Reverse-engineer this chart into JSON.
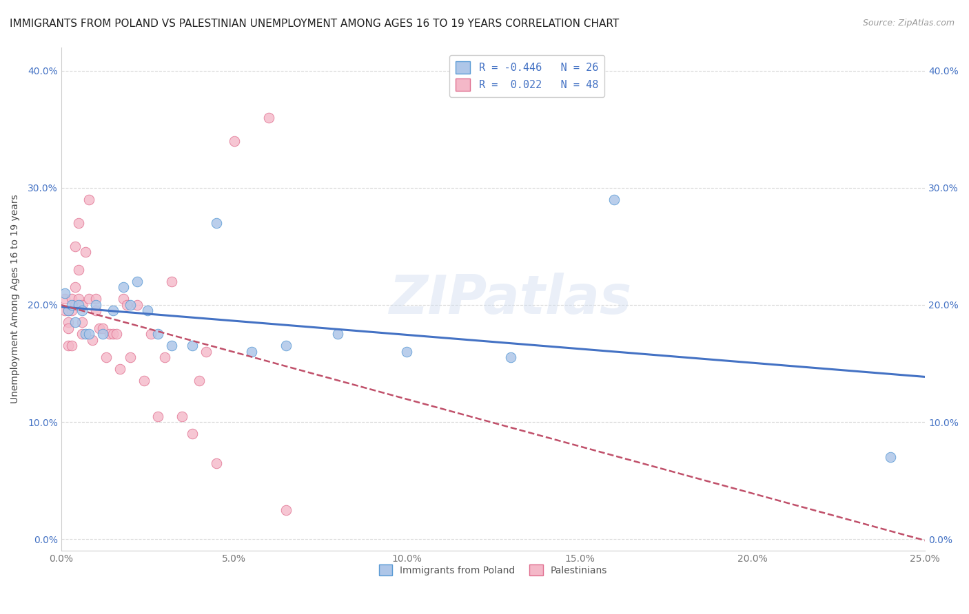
{
  "title": "IMMIGRANTS FROM POLAND VS PALESTINIAN UNEMPLOYMENT AMONG AGES 16 TO 19 YEARS CORRELATION CHART",
  "source": "Source: ZipAtlas.com",
  "ylabel": "Unemployment Among Ages 16 to 19 years",
  "xlabel_ticks": [
    "0.0%",
    "5.0%",
    "10.0%",
    "15.0%",
    "20.0%",
    "25.0%"
  ],
  "xlabel_vals": [
    0.0,
    0.05,
    0.1,
    0.15,
    0.2,
    0.25
  ],
  "ylabel_ticks": [
    "0.0%",
    "10.0%",
    "20.0%",
    "30.0%",
    "40.0%"
  ],
  "ylabel_vals": [
    0.0,
    0.1,
    0.2,
    0.3,
    0.4
  ],
  "xlim": [
    0.0,
    0.25
  ],
  "ylim": [
    -0.01,
    0.42
  ],
  "poland_x": [
    0.001,
    0.002,
    0.003,
    0.004,
    0.005,
    0.006,
    0.007,
    0.008,
    0.01,
    0.012,
    0.015,
    0.018,
    0.02,
    0.022,
    0.025,
    0.028,
    0.032,
    0.038,
    0.045,
    0.055,
    0.065,
    0.08,
    0.1,
    0.13,
    0.16,
    0.24
  ],
  "poland_y": [
    0.21,
    0.195,
    0.2,
    0.185,
    0.2,
    0.195,
    0.175,
    0.175,
    0.2,
    0.175,
    0.195,
    0.215,
    0.2,
    0.22,
    0.195,
    0.175,
    0.165,
    0.165,
    0.27,
    0.16,
    0.165,
    0.175,
    0.16,
    0.155,
    0.29,
    0.07
  ],
  "palestinian_x": [
    0.001,
    0.001,
    0.002,
    0.002,
    0.002,
    0.002,
    0.003,
    0.003,
    0.003,
    0.004,
    0.004,
    0.004,
    0.005,
    0.005,
    0.005,
    0.006,
    0.006,
    0.006,
    0.007,
    0.008,
    0.008,
    0.009,
    0.01,
    0.01,
    0.011,
    0.012,
    0.013,
    0.014,
    0.015,
    0.016,
    0.017,
    0.018,
    0.019,
    0.02,
    0.022,
    0.024,
    0.026,
    0.028,
    0.03,
    0.032,
    0.035,
    0.038,
    0.04,
    0.042,
    0.045,
    0.05,
    0.06,
    0.065
  ],
  "palestinian_y": [
    0.205,
    0.195,
    0.195,
    0.185,
    0.18,
    0.165,
    0.205,
    0.195,
    0.165,
    0.25,
    0.215,
    0.2,
    0.27,
    0.23,
    0.205,
    0.2,
    0.185,
    0.175,
    0.245,
    0.29,
    0.205,
    0.17,
    0.205,
    0.195,
    0.18,
    0.18,
    0.155,
    0.175,
    0.175,
    0.175,
    0.145,
    0.205,
    0.2,
    0.155,
    0.2,
    0.135,
    0.175,
    0.105,
    0.155,
    0.22,
    0.105,
    0.09,
    0.135,
    0.16,
    0.065,
    0.34,
    0.36,
    0.025
  ],
  "poland_color": "#aec6e8",
  "poland_edge_color": "#5b9bd5",
  "palestinian_color": "#f4b8c8",
  "palestinian_edge_color": "#e07090",
  "poland_line_color": "#4472c4",
  "palestinian_line_color": "#c0506a",
  "background_color": "#ffffff",
  "grid_color": "#d0d0d0",
  "watermark": "ZIPatlas",
  "title_fontsize": 11,
  "axis_label_fontsize": 10,
  "tick_fontsize": 10,
  "tick_color_x": "#777777",
  "tick_color_y": "#4472c4",
  "marker_size": 110,
  "r_poland": "-0.446",
  "n_poland": "26",
  "r_palestinian": "0.022",
  "n_palestinian": "48"
}
